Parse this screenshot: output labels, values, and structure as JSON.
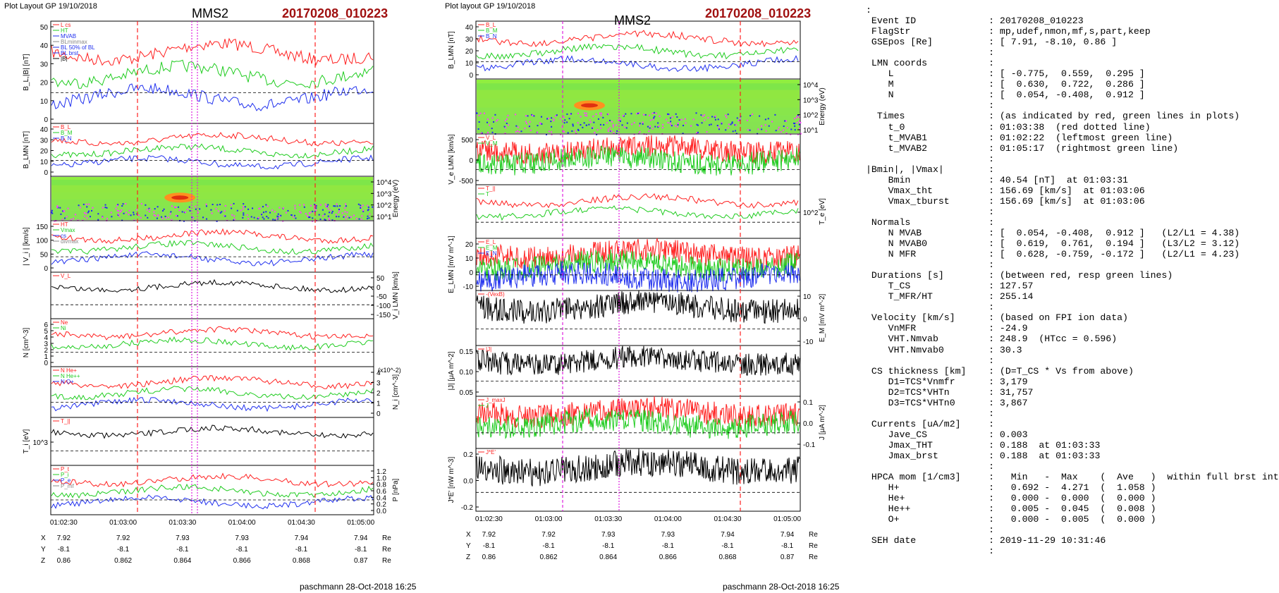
{
  "left": {
    "header": "Plot Layout GP 19/10/2018",
    "craft": "MMS2",
    "event": "20170208_010223",
    "footer": "paschmann 28-Oct-2018 16:25",
    "time_ticks": [
      "01:02:30",
      "01:03:00",
      "01:03:30",
      "01:04:00",
      "01:04:30",
      "01:05:00"
    ],
    "pos_rows": [
      {
        "label": "X",
        "vals": [
          "7.92",
          "7.92",
          "7.93",
          "7.93",
          "7.94",
          "7.94"
        ],
        "unit": "Re"
      },
      {
        "label": "Y",
        "vals": [
          "-8.1",
          "-8.1",
          "-8.1",
          "-8.1",
          "-8.1",
          "-8.1"
        ],
        "unit": "Re"
      },
      {
        "label": "Z",
        "vals": [
          "0.86",
          "0.862",
          "0.864",
          "0.866",
          "0.868",
          "0.87"
        ],
        "unit": "Re"
      }
    ],
    "panels": [
      {
        "ylabel": "B_L,|B| [nT]",
        "ticks": [
          "50",
          "40",
          "30",
          "20",
          "10",
          "0"
        ],
        "side": "left",
        "legend": [
          "L cs",
          "HT",
          "MVAB",
          "BLminmax",
          "BL 50% of BL",
          "BL brst",
          "|B|"
        ]
      },
      {
        "ylabel": "B_LMN [nT]",
        "ticks": [
          "40",
          "30",
          "20",
          "10",
          "0"
        ],
        "side": "left",
        "legend": [
          "B_L",
          "B_M",
          "B_N"
        ]
      },
      {
        "ylabel": "Energy (eV)",
        "ticks": [
          "10^4",
          "10^3",
          "10^2",
          "10^1"
        ],
        "side": "right",
        "legend": []
      },
      {
        "ylabel": "| V_i | [km/s]",
        "ticks": [
          "150",
          "100",
          "50",
          "0"
        ],
        "side": "left",
        "legend": [
          "HT",
          "Vmax",
          "cs",
          "divmax"
        ]
      },
      {
        "ylabel": "V_i LMN [km/s]",
        "ticks": [
          "50",
          "0",
          "-50",
          "-100",
          "-150"
        ],
        "side": "right",
        "legend": [
          "V_L"
        ]
      },
      {
        "ylabel": "N [cm^-3]",
        "ticks": [
          "6",
          "5",
          "4",
          "3",
          "2",
          "1",
          "0"
        ],
        "side": "left",
        "legend": [
          "Ne",
          "Ni"
        ]
      },
      {
        "ylabel": "N_i [cm^-3]",
        "ticks": [
          "4",
          "3",
          "2",
          "1",
          "0"
        ],
        "side": "right",
        "legend": [
          "N He+",
          "N He++",
          "N O+"
        ],
        "note": "(x10^-2)"
      },
      {
        "ylabel": "T_i [eV]",
        "ticks": [
          "10^3"
        ],
        "side": "left",
        "legend": [
          "T_||"
        ]
      },
      {
        "ylabel": "P [nPa]",
        "ticks": [
          "1.2",
          "1.0",
          "0.8",
          "0.6",
          "0.4",
          "0.2",
          "0.0"
        ],
        "side": "right",
        "legend": [
          "P_t",
          "P_i",
          "P_e",
          "P_mf"
        ]
      }
    ]
  },
  "middle": {
    "header": "Plot layout GP 19/10/2018",
    "craft": "MMS2",
    "event": "20170208_010223",
    "footer": "paschmann 28-Oct-2018 16:25",
    "time_ticks": [
      "01:02:30",
      "01:03:00",
      "01:03:30",
      "01:04:00",
      "01:04:30",
      "01:05:00"
    ],
    "pos_rows": [
      {
        "label": "X",
        "vals": [
          "7.92",
          "7.92",
          "7.93",
          "7.93",
          "7.94",
          "7.94"
        ],
        "unit": "Re"
      },
      {
        "label": "Y",
        "vals": [
          "-8.1",
          "-8.1",
          "-8.1",
          "-8.1",
          "-8.1",
          "-8.1"
        ],
        "unit": "Re"
      },
      {
        "label": "Z",
        "vals": [
          "0.86",
          "0.862",
          "0.864",
          "0.866",
          "0.868",
          "0.87"
        ],
        "unit": "Re"
      }
    ],
    "panels": [
      {
        "ylabel": "B_LMN [nT]",
        "ticks": [
          "40",
          "30",
          "20",
          "10",
          "0"
        ],
        "side": "left",
        "legend": [
          "B_L",
          "B_M",
          "B_N"
        ]
      },
      {
        "ylabel": "Energy (eV)",
        "ticks": [
          "10^4",
          "10^3",
          "10^2",
          "10^1"
        ],
        "side": "right",
        "legend": []
      },
      {
        "ylabel": "V_e LMN [km/s]",
        "ticks": [
          "500",
          "0",
          "-500"
        ],
        "side": "left",
        "legend": [
          "V_L",
          "V_M"
        ]
      },
      {
        "ylabel": "T_e [eV]",
        "ticks": [
          "10^2"
        ],
        "side": "right",
        "legend": [
          "T_||",
          "T"
        ]
      },
      {
        "ylabel": "E_LMN [mV m^-1]",
        "ticks": [
          "20",
          "10",
          "0",
          "-10"
        ],
        "side": "left",
        "legend": [
          "E_L",
          "E_M",
          "E_N"
        ]
      },
      {
        "ylabel": "E_M [mV m^-2]",
        "ticks": [
          "10",
          "0",
          "-10"
        ],
        "side": "right",
        "legend": [
          "-(VexB)"
        ]
      },
      {
        "ylabel": "|J| [μA m^-2]",
        "ticks": [
          "0.15",
          "0.10",
          "0.05"
        ],
        "side": "left",
        "legend": [
          "|J|"
        ]
      },
      {
        "ylabel": "J [μA m^-2]",
        "ticks": [
          "0.1",
          "0.0",
          "-0.1"
        ],
        "side": "right",
        "legend": [
          "J_maxJ",
          "J"
        ]
      },
      {
        "ylabel": "J*E' [nW m^-3]",
        "ticks": [
          "0.2",
          "0.0",
          "-0.2"
        ],
        "side": "left",
        "legend": [
          "J*E'"
        ]
      }
    ]
  },
  "info_lines": [
    ":",
    " Event ID             : 20170208_010223",
    " FlagStr              : mp,udef,nmon,mf,s,part,keep",
    " GSEpos [Re]          : [ 7.91, -8.10, 0.86 ]",
    "                      :",
    " LMN coords           :",
    "    L                 : [ -0.775,  0.559,  0.295 ]",
    "    M                 : [  0.630,  0.722,  0.286 ]",
    "    N                 : [  0.054, -0.408,  0.912 ]",
    "                      :",
    "  Times               : (as indicated by red, green lines in plots)",
    "    t_0               : 01:03:38  (red dotted line)",
    "    t_MVAB1           : 01:02:22  (leftmost green line)",
    "    t_MVAB2           : 01:05:17  (rightmost green line)",
    "                      :",
    "|Bmin|, |Vmax|        :",
    "    Bmin              : 40.54 [nT]  at 01:03:31",
    "    Vmax_tht          : 156.69 [km/s]  at 01:03:06",
    "    Vmax_tburst       : 156.69 [km/s]  at 01:03:06",
    "                      :",
    " Normals              :",
    "    N MVAB            : [  0.054, -0.408,  0.912 ]   (L2/L1 = 4.38)",
    "    N MVAB0           : [  0.619,  0.761,  0.194 ]   (L3/L2 = 3.12)",
    "    N MFR             : [  0.628, -0.759, -0.172 ]   (L2/L1 = 4.23)",
    "                      :",
    " Durations [s]        : (between red, resp green lines)",
    "    T_CS              : 127.57",
    "    T_MFR/HT          : 255.14",
    "                      :",
    " Velocity [km/s]      : (based on FPI ion data)",
    "    VnMFR             : -24.9",
    "    VHT.Nmvab         : 248.9  (HTcc = 0.596)",
    "    VHT.Nmvab0        : 30.3",
    "                      :",
    " CS thickness [km]    : (D=T_CS * Vs from above)",
    "    D1=TCS*Vnmfr      : 3,179",
    "    D2=TCS*VHTn       : 31,757",
    "    D3=TCS*VHTn0      : 3,867",
    "                      :",
    " Currents [uA/m2]     :",
    "    Jave_CS           : 0.003",
    "    Jmax_THT          : 0.188  at 01:03:33",
    "    Jmax_brst         : 0.188  at 01:03:33",
    "                      :",
    " HPCA mom [1/cm3]     :   Min   -  Max    (  Ave   )  within full brst int",
    "    H+                :   0.692 -  4.271  (  1.058 )",
    "    He+               :   0.000 -  0.000  (  0.000 )",
    "    He++              :   0.005 -  0.045  (  0.008 )",
    "    O+                :   0.000 -  0.005  (  0.000 )",
    "                      :",
    " SEH date             : 2019-11-29 10:31:46",
    "                      :"
  ],
  "colors": {
    "event": "#a01010",
    "red": "#ff2020",
    "green": "#20cc20",
    "blue": "#2030ee",
    "magenta": "#e020e0",
    "black": "#000000"
  }
}
